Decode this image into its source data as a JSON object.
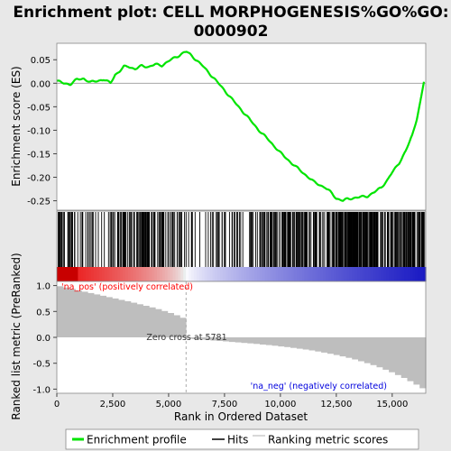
{
  "chart_data": {
    "type": "line",
    "title": "Enrichment plot: CELL MORPHOGENESIS%GO%GO:\n0000902",
    "xlabel": "Rank in Ordered Dataset",
    "ylabel_top": "Enrichment score (ES)",
    "ylabel_bottom": "Ranked list metric (PreRanked)",
    "xlim": [
      0,
      16500
    ],
    "x_ticks": [
      0,
      2500,
      5000,
      7500,
      10000,
      12500,
      15000
    ],
    "x_tick_labels": [
      "0",
      "2,500",
      "5,000",
      "7,500",
      "10,000",
      "12,500",
      "15,000"
    ],
    "es_ylim": [
      -0.27,
      0.085
    ],
    "es_y_ticks": [
      0.05,
      0.0,
      -0.05,
      -0.1,
      -0.15,
      -0.2,
      -0.25
    ],
    "es_y_tick_labels": [
      "0.05",
      "0.00",
      "-0.05",
      "-0.10",
      "-0.15",
      "-0.20",
      "-0.25"
    ],
    "metric_ylim": [
      -1.08,
      1.08
    ],
    "metric_y_ticks": [
      1.0,
      0.5,
      0.0,
      -0.5,
      -1.0
    ],
    "metric_y_tick_labels": [
      "1.0",
      "0.5",
      "0.0",
      "-0.5",
      "-1.0"
    ],
    "enrichment_profile": {
      "name": "Enrichment profile",
      "color": "#00e400",
      "x": [
        0,
        300,
        600,
        900,
        1200,
        1500,
        1800,
        2100,
        2400,
        2600,
        2800,
        3000,
        3200,
        3500,
        3800,
        4100,
        4400,
        4700,
        5000,
        5300,
        5500,
        5700,
        5800,
        6000,
        6500,
        7000,
        7500,
        8000,
        8500,
        9000,
        9500,
        10000,
        10500,
        11000,
        11500,
        12000,
        12300,
        12500,
        12800,
        13000,
        13300,
        13600,
        13900,
        14200,
        14500,
        14800,
        15000,
        15300,
        15600,
        15900,
        16100,
        16300,
        16420
      ],
      "y": [
        0.005,
        0.0,
        -0.002,
        0.008,
        0.01,
        0.002,
        0.005,
        0.008,
        0.0,
        0.018,
        0.025,
        0.035,
        0.036,
        0.03,
        0.037,
        0.035,
        0.04,
        0.038,
        0.047,
        0.055,
        0.06,
        0.066,
        0.067,
        0.06,
        0.038,
        0.012,
        -0.015,
        -0.043,
        -0.07,
        -0.098,
        -0.122,
        -0.148,
        -0.17,
        -0.19,
        -0.21,
        -0.222,
        -0.234,
        -0.245,
        -0.25,
        -0.246,
        -0.244,
        -0.242,
        -0.24,
        -0.232,
        -0.222,
        -0.205,
        -0.19,
        -0.17,
        -0.145,
        -0.11,
        -0.075,
        -0.03,
        0.003
      ]
    },
    "zero_cross": 5781,
    "zero_cross_label": "Zero cross at 5781",
    "pos_label": "'na_pos' (positively correlated)",
    "neg_label": "'na_neg' (negatively correlated)",
    "n_genes": 16500,
    "legend": [
      "Enrichment profile",
      "Hits",
      "Ranking metric scores"
    ],
    "colors": {
      "profile": "#00e400",
      "hit": "#000000",
      "metric": "#bebebe",
      "pos_label": "#ff0000",
      "neg_label": "#0000dd",
      "zero_line": "#aaaaaa"
    }
  }
}
